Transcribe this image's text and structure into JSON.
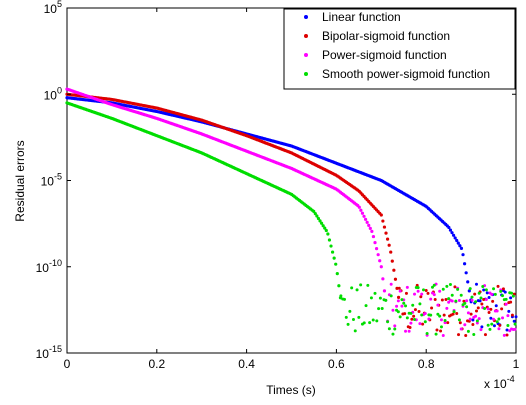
{
  "chart_data": {
    "type": "scatter",
    "xlabel": "Times (s)",
    "ylabel": "Residual errors",
    "x_multiplier": "x 10",
    "x_multiplier_exp": "-4",
    "xlim": [
      0,
      1
    ],
    "ylim_exponents": [
      -15,
      5
    ],
    "y_scale": "log",
    "x_ticks": [
      "0",
      "0.2",
      "0.4",
      "0.6",
      "0.8",
      "1"
    ],
    "y_ticks": [
      {
        "base": "10",
        "exp": "5",
        "value": 5
      },
      {
        "base": "10",
        "exp": "0",
        "value": 0
      },
      {
        "base": "10",
        "exp": "-5",
        "value": -5
      },
      {
        "base": "10",
        "exp": "-10",
        "value": -10
      },
      {
        "base": "10",
        "exp": "-15",
        "value": -15
      }
    ],
    "grid": false,
    "legend_position": "top-right",
    "series": [
      {
        "name": "Linear function",
        "color": "#0000ff",
        "points": [
          [
            0,
            -0.2
          ],
          [
            0.1,
            -0.5
          ],
          [
            0.2,
            -1.0
          ],
          [
            0.3,
            -1.6
          ],
          [
            0.4,
            -2.3
          ],
          [
            0.5,
            -3.0
          ],
          [
            0.6,
            -4.0
          ],
          [
            0.7,
            -5.0
          ],
          [
            0.8,
            -6.5
          ],
          [
            0.85,
            -7.7
          ],
          [
            0.88,
            -9.0
          ],
          [
            0.9,
            -12.0
          ]
        ],
        "noise_from": 0.9
      },
      {
        "name": "Bipolar-sigmoid function",
        "color": "#dd0000",
        "points": [
          [
            0,
            0
          ],
          [
            0.1,
            -0.3
          ],
          [
            0.2,
            -0.8
          ],
          [
            0.3,
            -1.5
          ],
          [
            0.4,
            -2.4
          ],
          [
            0.5,
            -3.4
          ],
          [
            0.6,
            -4.7
          ],
          [
            0.65,
            -5.6
          ],
          [
            0.7,
            -7.0
          ],
          [
            0.72,
            -9.0
          ],
          [
            0.74,
            -12.0
          ]
        ],
        "noise_from": 0.74
      },
      {
        "name": "Power-sigmoid function",
        "color": "#ff00ff",
        "points": [
          [
            0,
            0.3
          ],
          [
            0.1,
            -0.6
          ],
          [
            0.2,
            -1.4
          ],
          [
            0.3,
            -2.3
          ],
          [
            0.4,
            -3.3
          ],
          [
            0.5,
            -4.3
          ],
          [
            0.6,
            -5.5
          ],
          [
            0.65,
            -6.5
          ],
          [
            0.68,
            -8.0
          ],
          [
            0.7,
            -10.0
          ],
          [
            0.71,
            -12.0
          ]
        ],
        "noise_from": 0.71
      },
      {
        "name": "Smooth power-sigmoid function",
        "color": "#00dd00",
        "points": [
          [
            0,
            -0.5
          ],
          [
            0.1,
            -1.4
          ],
          [
            0.2,
            -2.4
          ],
          [
            0.3,
            -3.4
          ],
          [
            0.4,
            -4.6
          ],
          [
            0.5,
            -5.8
          ],
          [
            0.55,
            -6.8
          ],
          [
            0.58,
            -8.0
          ],
          [
            0.6,
            -10.0
          ],
          [
            0.61,
            -12.0
          ]
        ],
        "noise_from": 0.61
      }
    ],
    "noise_band": [
      -14.0,
      -11.0
    ]
  }
}
